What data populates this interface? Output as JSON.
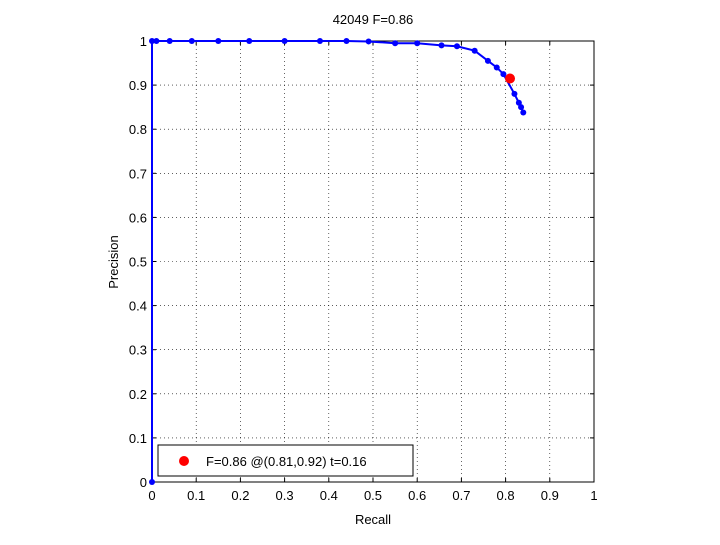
{
  "chart_data": {
    "type": "line",
    "title": "42049 F=0.86",
    "xlabel": "Recall",
    "ylabel": "Precision",
    "xlim": [
      0,
      1
    ],
    "ylim": [
      0,
      1
    ],
    "xticks": [
      "0",
      "0.1",
      "0.2",
      "0.3",
      "0.4",
      "0.5",
      "0.6",
      "0.7",
      "0.8",
      "0.9",
      "1"
    ],
    "yticks": [
      "0",
      "0.1",
      "0.2",
      "0.3",
      "0.4",
      "0.5",
      "0.6",
      "0.7",
      "0.8",
      "0.9",
      "1"
    ],
    "grid": true,
    "legend_position": "bottom-left",
    "series": [
      {
        "color": "#0000ff",
        "marker": "dot",
        "x": [
          0.0,
          0.0,
          0.01,
          0.04,
          0.09,
          0.15,
          0.22,
          0.3,
          0.38,
          0.44,
          0.49,
          0.55,
          0.6,
          0.655,
          0.69,
          0.73,
          0.76,
          0.78,
          0.795,
          0.82,
          0.83,
          0.835,
          0.84
        ],
        "y": [
          0.0,
          1.0,
          1.0,
          1.0,
          1.0,
          1.0,
          1.0,
          1.0,
          1.0,
          1.0,
          0.999,
          0.995,
          0.995,
          0.99,
          0.988,
          0.978,
          0.955,
          0.94,
          0.925,
          0.88,
          0.86,
          0.85,
          0.838
        ]
      }
    ],
    "best_point": {
      "label": "F=0.86 @(0.81,0.92) t=0.16",
      "x": 0.81,
      "y": 0.915,
      "color": "#ff0000"
    }
  }
}
